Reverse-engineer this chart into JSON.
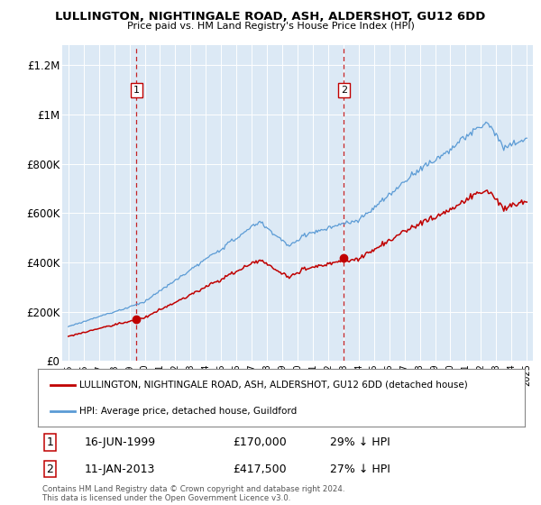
{
  "title": "LULLINGTON, NIGHTINGALE ROAD, ASH, ALDERSHOT, GU12 6DD",
  "subtitle": "Price paid vs. HM Land Registry's House Price Index (HPI)",
  "ylim": [
    0,
    1200000
  ],
  "yticks": [
    0,
    200000,
    400000,
    600000,
    800000,
    1000000,
    1200000
  ],
  "ytick_labels": [
    "£0",
    "£200K",
    "£400K",
    "£600K",
    "£800K",
    "£1M",
    "£1.2M"
  ],
  "sale1_year": 1999.45,
  "sale1_price": 170000,
  "sale2_year": 2013.03,
  "sale2_price": 417500,
  "hpi_color": "#5b9bd5",
  "price_color": "#c00000",
  "vline_color": "#c00000",
  "plot_bg_color": "#dce9f5",
  "legend_entry1": "LULLINGTON, NIGHTINGALE ROAD, ASH, ALDERSHOT, GU12 6DD (detached house)",
  "legend_entry2": "HPI: Average price, detached house, Guildford",
  "annotation1_date": "16-JUN-1999",
  "annotation1_price": "£170,000",
  "annotation1_hpi": "29% ↓ HPI",
  "annotation2_date": "11-JAN-2013",
  "annotation2_price": "£417,500",
  "annotation2_hpi": "27% ↓ HPI",
  "footer": "Contains HM Land Registry data © Crown copyright and database right 2024.\nThis data is licensed under the Open Government Licence v3.0."
}
